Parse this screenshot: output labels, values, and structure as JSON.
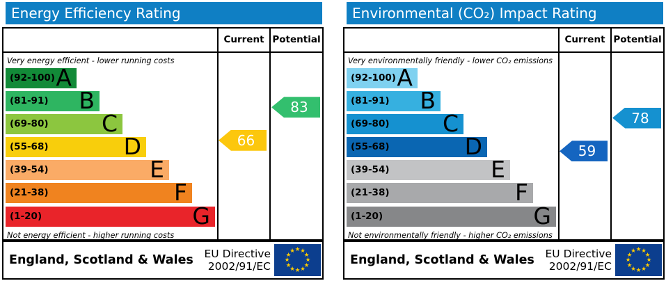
{
  "header_bg": "#0f7fc4",
  "chart_data": [
    {
      "type": "bar",
      "title": "Energy Efficiency Rating",
      "top_note": "Very energy efficient - lower running costs",
      "bottom_note": "Not energy efficient - higher running costs",
      "columns": {
        "current": "Current",
        "potential": "Potential"
      },
      "current": {
        "value": 66,
        "band": "D",
        "color": "#fcc70d"
      },
      "potential": {
        "value": 83,
        "band": "B",
        "color": "#33bf6e"
      },
      "bands": [
        {
          "range": "(92-100)",
          "letter": "A",
          "low": 92,
          "high": 100,
          "color": "#128a38"
        },
        {
          "range": "(81-91)",
          "letter": "B",
          "low": 81,
          "high": 91,
          "color": "#2eb561"
        },
        {
          "range": "(69-80)",
          "letter": "C",
          "low": 69,
          "high": 80,
          "color": "#8cc63f"
        },
        {
          "range": "(55-68)",
          "letter": "D",
          "low": 55,
          "high": 68,
          "color": "#f8ce0c"
        },
        {
          "range": "(39-54)",
          "letter": "E",
          "low": 39,
          "high": 54,
          "color": "#faab66"
        },
        {
          "range": "(21-38)",
          "letter": "F",
          "low": 21,
          "high": 38,
          "color": "#f0831f"
        },
        {
          "range": "(1-20)",
          "letter": "G",
          "low": 1,
          "high": 20,
          "color": "#e9242a"
        }
      ]
    },
    {
      "type": "bar",
      "title": "Environmental (CO₂) Impact Rating",
      "top_note": "Very environmentally friendly - lower CO₂ emissions",
      "bottom_note": "Not environmentally friendly - higher CO₂ emissions",
      "columns": {
        "current": "Current",
        "potential": "Potential"
      },
      "current": {
        "value": 59,
        "band": "D",
        "color": "#1565c0"
      },
      "potential": {
        "value": 78,
        "band": "C",
        "color": "#1591d0"
      },
      "bands": [
        {
          "range": "(92-100)",
          "letter": "A",
          "low": 92,
          "high": 100,
          "color": "#7fd1f0"
        },
        {
          "range": "(81-91)",
          "letter": "B",
          "low": 81,
          "high": 91,
          "color": "#36b0e0"
        },
        {
          "range": "(69-80)",
          "letter": "C",
          "low": 69,
          "high": 80,
          "color": "#1591d0"
        },
        {
          "range": "(55-68)",
          "letter": "D",
          "low": 55,
          "high": 68,
          "color": "#0a66b2"
        },
        {
          "range": "(39-54)",
          "letter": "E",
          "low": 39,
          "high": 54,
          "color": "#c2c3c5"
        },
        {
          "range": "(21-38)",
          "letter": "F",
          "low": 21,
          "high": 38,
          "color": "#a8a9ab"
        },
        {
          "range": "(1-20)",
          "letter": "G",
          "low": 1,
          "high": 20,
          "color": "#868789"
        }
      ]
    }
  ],
  "footer": {
    "region": "England, Scotland & Wales",
    "directive": [
      "EU Directive",
      "2002/91/EC"
    ],
    "flag": {
      "background": "#0c3e8e",
      "star_color": "#ffcc00"
    }
  }
}
